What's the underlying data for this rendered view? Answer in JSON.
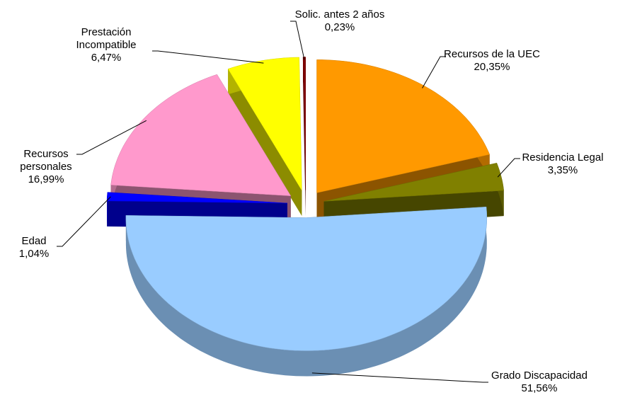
{
  "chart_data": {
    "type": "pie",
    "categories": [
      "Recursos de la UEC",
      "Residencia Legal",
      "Grado Discapacidad",
      "Edad",
      "Recursos personales",
      "Prestación Incompatible",
      "Solic. antes 2 años"
    ],
    "values": [
      20.35,
      3.35,
      51.56,
      1.04,
      16.99,
      6.47,
      0.23
    ],
    "value_labels": [
      "20,35%",
      "3,35%",
      "51,56%",
      "1,04%",
      "16,99%",
      "6,47%",
      "0,23%"
    ],
    "colors": [
      "#ff9900",
      "#808000",
      "#99ccff",
      "#0000ff",
      "#ff99cc",
      "#ffff00",
      "#800000"
    ]
  }
}
